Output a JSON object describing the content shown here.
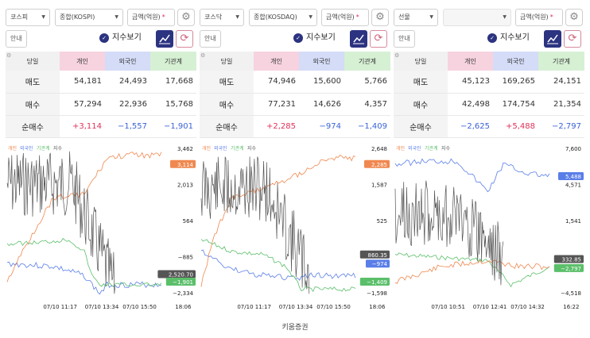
{
  "panels": [
    {
      "market_label": "코스피",
      "index_label": "종합(KOSPI)",
      "index_disabled": false,
      "unit_label": "금액(억원)",
      "required_mark": "*",
      "guide_label": "안내",
      "show_index_label": "지수보기",
      "table": {
        "headers": [
          "당일",
          "개인",
          "외국인",
          "기관계"
        ],
        "rows": [
          {
            "label": "매도",
            "values": [
              "54,181",
              "24,493",
              "17,668"
            ]
          },
          {
            "label": "매수",
            "values": [
              "57,294",
              "22,936",
              "15,768"
            ]
          },
          {
            "label": "순매수",
            "values": [
              "+3,114",
              "−1,557",
              "−1,901"
            ]
          }
        ]
      },
      "chart_legend": {
        "individual": "개인",
        "foreign": "외국인",
        "institution": "기관계",
        "index": "지수"
      },
      "y_ticks": [
        "3,462",
        "2,013",
        "564",
        "−885",
        "−2,334"
      ],
      "badges": [
        {
          "text": "3,114",
          "color": "#f0884f"
        },
        {
          "text": "2,520.70",
          "color": "#555555"
        },
        {
          "text": "−1,901",
          "color": "#5bbf6a"
        }
      ],
      "x_ticks": [
        "07/10 11:17",
        "07/10 13:34",
        "07/10 15:50",
        "18:06"
      ]
    },
    {
      "market_label": "코스닥",
      "index_label": "종합(KOSDAQ)",
      "index_disabled": false,
      "unit_label": "금액(억원)",
      "required_mark": "*",
      "guide_label": "안내",
      "show_index_label": "지수보기",
      "table": {
        "headers": [
          "당일",
          "개인",
          "외국인",
          "기관계"
        ],
        "rows": [
          {
            "label": "매도",
            "values": [
              "74,946",
              "15,600",
              "5,766"
            ]
          },
          {
            "label": "매수",
            "values": [
              "77,231",
              "14,626",
              "4,357"
            ]
          },
          {
            "label": "순매수",
            "values": [
              "+2,285",
              "−974",
              "−1,409"
            ]
          }
        ]
      },
      "chart_legend": {
        "individual": "개인",
        "foreign": "외국인",
        "institution": "기관계",
        "index": "지수"
      },
      "y_ticks": [
        "2,648",
        "1,587",
        "525",
        "",
        "−1,598"
      ],
      "badges": [
        {
          "text": "2,285",
          "color": "#f0884f"
        },
        {
          "text": "860.35",
          "color": "#555555"
        },
        {
          "text": "−974",
          "color": "#5a7ee8"
        },
        {
          "text": "−1,409",
          "color": "#5bbf6a"
        }
      ],
      "x_ticks": [
        "07/10 11:17",
        "07/10 13:34",
        "07/10 15:50",
        "18:06"
      ]
    },
    {
      "market_label": "선물",
      "index_label": "",
      "index_disabled": true,
      "unit_label": "금액(억원)",
      "required_mark": "*",
      "guide_label": "안내",
      "show_index_label": "지수보기",
      "table": {
        "headers": [
          "당일",
          "개인",
          "외국인",
          "기관계"
        ],
        "rows": [
          {
            "label": "매도",
            "values": [
              "45,123",
              "169,265",
              "24,151"
            ]
          },
          {
            "label": "매수",
            "values": [
              "42,498",
              "174,754",
              "21,354"
            ]
          },
          {
            "label": "순매수",
            "values": [
              "−2,625",
              "+5,488",
              "−2,797"
            ]
          }
        ]
      },
      "chart_legend": {
        "individual": "개인",
        "foreign": "외국인",
        "institution": "기관계",
        "index": "지수"
      },
      "y_ticks": [
        "7,600",
        "4,571",
        "1,541",
        "",
        "−4,518"
      ],
      "badges": [
        {
          "text": "5,488",
          "color": "#5a7ee8"
        },
        {
          "text": "332.85",
          "color": "#555555"
        },
        {
          "text": "−2,797",
          "color": "#5bbf6a"
        }
      ],
      "x_ticks": [
        "07/10 10:51",
        "07/10 12:41",
        "07/10 14:32",
        "16:22"
      ]
    }
  ],
  "colors": {
    "individual": "#f0884f",
    "foreign": "#5a7ee8",
    "institution": "#5bbf6a",
    "index": "#555555",
    "positive": "#e0305a",
    "negative": "#3a62d6",
    "accent": "#2c3380"
  },
  "footer": "키움증권"
}
